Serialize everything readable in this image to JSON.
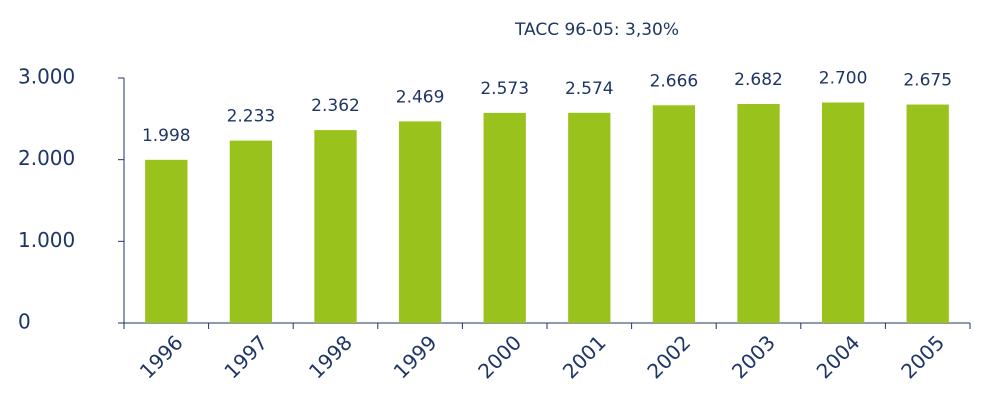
{
  "chart_data": {
    "type": "bar",
    "subtitle": "TACC 96-05: 3,30%",
    "categories": [
      "1996",
      "1997",
      "1998",
      "1999",
      "2000",
      "2001",
      "2002",
      "2003",
      "2004",
      "2005"
    ],
    "values": [
      1998,
      2233,
      2362,
      2469,
      2573,
      2574,
      2666,
      2682,
      2700,
      2675
    ],
    "value_labels": [
      "1.998",
      "2.233",
      "2.362",
      "2.469",
      "2.573",
      "2.574",
      "2.666",
      "2.682",
      "2.700",
      "2.675"
    ],
    "color": "#99c31c",
    "ylim": [
      0,
      3000
    ],
    "yticks": [
      0,
      {
        "value": 1000,
        "label": "1.000"
      },
      {
        "value": 2000,
        "label": "2.000"
      },
      {
        "value": 3000,
        "label": "3.000"
      }
    ],
    "grid": false
  }
}
